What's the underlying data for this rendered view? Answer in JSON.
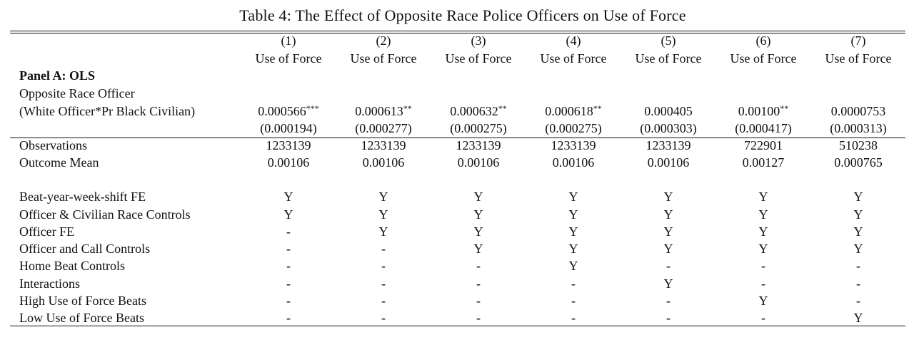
{
  "caption": "Table 4: The Effect of Opposite Race Police Officers on Use of Force",
  "columns": [
    {
      "num": "(1)",
      "dep": "Use of Force"
    },
    {
      "num": "(2)",
      "dep": "Use of Force"
    },
    {
      "num": "(3)",
      "dep": "Use of Force"
    },
    {
      "num": "(4)",
      "dep": "Use of Force"
    },
    {
      "num": "(5)",
      "dep": "Use of Force"
    },
    {
      "num": "(6)",
      "dep": "Use of Force"
    },
    {
      "num": "(7)",
      "dep": "Use of Force"
    }
  ],
  "panel_title": "Panel A: OLS",
  "variable": {
    "name_line1": "Opposite Race Officer",
    "name_line2": "(White Officer*Pr Black Civilian)",
    "coefficients": [
      "0.000566",
      "0.000613",
      "0.000632",
      "0.000618",
      "0.000405",
      "0.00100",
      "0.0000753"
    ],
    "stars": [
      "***",
      "**",
      "**",
      "**",
      "",
      "**",
      ""
    ],
    "std_errors": [
      "(0.000194)",
      "(0.000277)",
      "(0.000275)",
      "(0.000275)",
      "(0.000303)",
      "(0.000417)",
      "(0.000313)"
    ]
  },
  "stats": [
    {
      "label": "Observations",
      "values": [
        "1233139",
        "1233139",
        "1233139",
        "1233139",
        "1233139",
        "722901",
        "510238"
      ]
    },
    {
      "label": "Outcome Mean",
      "values": [
        "0.00106",
        "0.00106",
        "0.00106",
        "0.00106",
        "0.00106",
        "0.00127",
        "0.000765"
      ]
    }
  ],
  "controls": [
    {
      "label": "Beat-year-week-shift FE",
      "values": [
        "Y",
        "Y",
        "Y",
        "Y",
        "Y",
        "Y",
        "Y"
      ]
    },
    {
      "label": "Officer & Civilian Race Controls",
      "values": [
        "Y",
        "Y",
        "Y",
        "Y",
        "Y",
        "Y",
        "Y"
      ]
    },
    {
      "label": "Officer FE",
      "values": [
        "-",
        "Y",
        "Y",
        "Y",
        "Y",
        "Y",
        "Y"
      ]
    },
    {
      "label": "Officer and Call Controls",
      "values": [
        "-",
        "-",
        "Y",
        "Y",
        "Y",
        "Y",
        "Y"
      ]
    },
    {
      "label": "Home Beat Controls",
      "values": [
        "-",
        "-",
        "-",
        "Y",
        "-",
        "-",
        "-"
      ]
    },
    {
      "label": "Interactions",
      "values": [
        "-",
        "-",
        "-",
        "-",
        "Y",
        "-",
        "-"
      ]
    },
    {
      "label": "High Use of Force Beats",
      "values": [
        "-",
        "-",
        "-",
        "-",
        "-",
        "Y",
        "-"
      ]
    },
    {
      "label": "Low Use of Force Beats",
      "values": [
        "-",
        "-",
        "-",
        "-",
        "-",
        "-",
        "Y"
      ]
    }
  ]
}
